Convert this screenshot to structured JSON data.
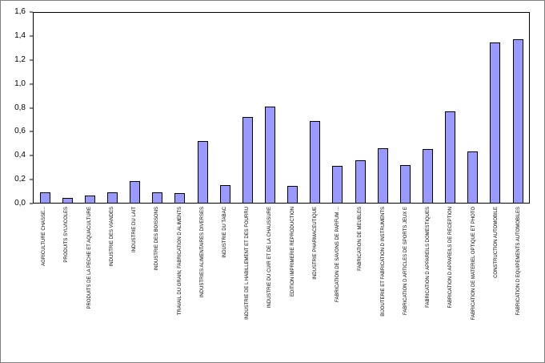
{
  "chart_data": {
    "type": "bar",
    "title": "",
    "xlabel": "",
    "ylabel": "",
    "categories": [
      "AGRICULTURE CHASSE...",
      "PRODUITS SYLVICOLES",
      "PRODUITS DE LA PECHE ET AQUACULTURE",
      "INDUSTRIE DES VIANDES",
      "INDUSTRIE DU LAIT",
      "INDUSTRIE DES BOISSONS",
      "TRAVAIL DU GRAIN; FABRICATION D ALIMENTS",
      "INDUSTRIES ALIMENTAIRES DIVERSES",
      "INDUSTRIE DU TABAC",
      "INDUSTRIE DE L HABILLEMENT ET DES FOURRU",
      "INDUSTRIE DU CUIR ET DE LA CHAUSSURE",
      "EDITION IMPRIMERIE REPRODUCTION",
      "INDUSTRIE PHARMACEUTIQUE",
      "FABRICATION DE SAVONS DE PARFUM ...",
      "FABRICATION DE MEUBLES",
      "BIJOUTERIE ET FABRICATION D INSTRUMENTS",
      "FABRICATION D ARTICLES DE SPORTS JEUX E",
      "FABRICATION D APPAREILS DOMESTIQUES",
      "FABRICATION D APPAREILS DE RECEPTION",
      "FABRICATION DE MATERIEL OPTIQUE ET PHOTO",
      "CONSTRUCTION AUTOMOBILE",
      "FABRICATION D EQUIPEMENTS AUTOMOBILES"
    ],
    "values": [
      0.09,
      0.04,
      0.06,
      0.09,
      0.18,
      0.09,
      0.08,
      0.52,
      0.15,
      0.72,
      0.81,
      0.14,
      0.69,
      0.31,
      0.36,
      0.46,
      0.32,
      0.45,
      0.77,
      0.43,
      1.35,
      1.38
    ],
    "ylim": [
      0,
      1.6
    ],
    "ytick_step": 0.2,
    "ytick_labels": [
      "0,0",
      "0,2",
      "0,4",
      "0,6",
      "0,8",
      "1,0",
      "1,2",
      "1,4",
      "1,6"
    ],
    "grid": false,
    "legend": false,
    "bar_fill": "#9999FF",
    "bar_border": "#000000",
    "plot_border": "#000000",
    "frame_border": "#7F7F7F"
  }
}
